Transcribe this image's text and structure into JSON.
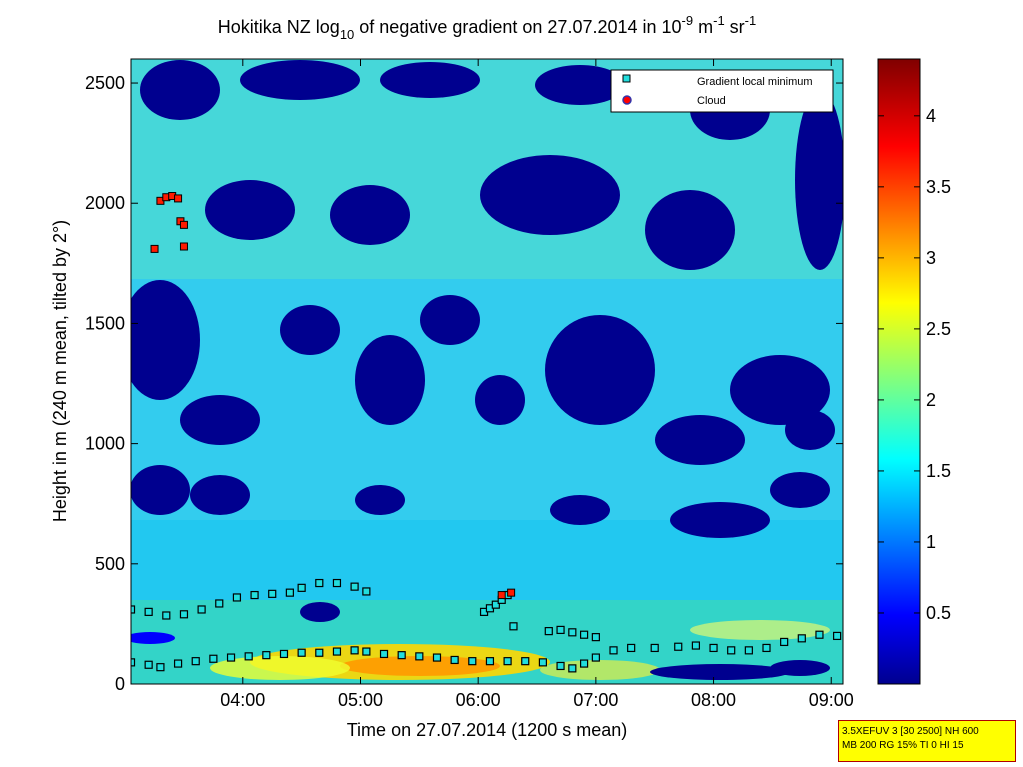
{
  "chart_data": {
    "type": "heatmap",
    "title": "Hokitika NZ log10 of negative gradient on 27.07.2014 in 10^-9 m^-1 sr^-1",
    "title_parts": {
      "pre": "Hokitika NZ log",
      "sub": "10",
      "mid": " of negative gradient on 27.07.2014 in 10",
      "sup1": "-9",
      "unit1": " m",
      "sup2": "-1",
      "unit2": " sr",
      "sup3": "-1"
    },
    "xlabel": "Time on 27.07.2014 (1200 s mean)",
    "ylabel": "Height in m (240 m mean, tilted by 2°)",
    "x_range_hours": [
      3.05,
      9.1
    ],
    "xlim": [
      "03:03",
      "09:06"
    ],
    "ylim": [
      0,
      2600
    ],
    "x_tick_labels": [
      "04:00",
      "05:00",
      "06:00",
      "07:00",
      "08:00",
      "09:00"
    ],
    "x_tick_hours": [
      4,
      5,
      6,
      7,
      8,
      9
    ],
    "y_ticks": [
      0,
      500,
      1000,
      1500,
      2000,
      2500
    ],
    "colorbar": {
      "range": [
        0,
        4.4
      ],
      "ticks": [
        0.5,
        1,
        1.5,
        2,
        2.5,
        3,
        3.5,
        4
      ],
      "colormap": "jet"
    },
    "legend": {
      "placement": "top-right",
      "entries": [
        {
          "label": "Gradient local minimum",
          "color": "#22dddd",
          "marker": "square"
        },
        {
          "label": "Cloud",
          "color": "#ff0000",
          "marker": "circle"
        }
      ]
    },
    "grid": false,
    "series": [
      {
        "name": "Gradient local minimum",
        "points": [
          [
            3.05,
            310
          ],
          [
            3.2,
            300
          ],
          [
            3.35,
            285
          ],
          [
            3.5,
            290
          ],
          [
            3.65,
            310
          ],
          [
            3.8,
            335
          ],
          [
            3.95,
            360
          ],
          [
            4.1,
            370
          ],
          [
            4.25,
            375
          ],
          [
            4.4,
            380
          ],
          [
            4.5,
            400
          ],
          [
            4.65,
            420
          ],
          [
            4.8,
            420
          ],
          [
            4.95,
            405
          ],
          [
            5.05,
            385
          ],
          [
            3.05,
            90
          ],
          [
            3.2,
            80
          ],
          [
            3.3,
            70
          ],
          [
            3.45,
            85
          ],
          [
            3.6,
            95
          ],
          [
            3.75,
            105
          ],
          [
            3.9,
            110
          ],
          [
            4.05,
            115
          ],
          [
            4.2,
            120
          ],
          [
            4.35,
            125
          ],
          [
            4.5,
            130
          ],
          [
            4.65,
            130
          ],
          [
            4.8,
            135
          ],
          [
            4.95,
            140
          ],
          [
            5.05,
            135
          ],
          [
            5.2,
            125
          ],
          [
            5.35,
            120
          ],
          [
            5.5,
            115
          ],
          [
            5.65,
            110
          ],
          [
            5.8,
            100
          ],
          [
            5.95,
            95
          ],
          [
            6.1,
            95
          ],
          [
            6.25,
            95
          ],
          [
            6.4,
            95
          ],
          [
            6.55,
            90
          ],
          [
            6.7,
            75
          ],
          [
            6.8,
            65
          ],
          [
            6.9,
            85
          ],
          [
            7.0,
            110
          ],
          [
            7.15,
            140
          ],
          [
            7.3,
            150
          ],
          [
            7.5,
            150
          ],
          [
            7.7,
            155
          ],
          [
            7.85,
            160
          ],
          [
            8.0,
            150
          ],
          [
            8.15,
            140
          ],
          [
            8.3,
            140
          ],
          [
            8.45,
            150
          ],
          [
            8.6,
            175
          ],
          [
            8.75,
            190
          ],
          [
            8.9,
            205
          ],
          [
            9.05,
            200
          ],
          [
            6.05,
            300
          ],
          [
            6.1,
            315
          ],
          [
            6.15,
            330
          ],
          [
            6.2,
            350
          ],
          [
            6.25,
            370
          ],
          [
            6.3,
            240
          ],
          [
            6.6,
            220
          ],
          [
            6.7,
            225
          ],
          [
            6.8,
            215
          ],
          [
            6.9,
            205
          ],
          [
            7.0,
            195
          ]
        ]
      },
      {
        "name": "Cloud",
        "points": [
          [
            3.25,
            1810
          ],
          [
            3.3,
            2010
          ],
          [
            3.35,
            2025
          ],
          [
            3.4,
            2030
          ],
          [
            3.45,
            2020
          ],
          [
            3.47,
            1925
          ],
          [
            3.5,
            1910
          ],
          [
            3.5,
            1820
          ],
          [
            6.2,
            370
          ],
          [
            6.28,
            380
          ]
        ]
      }
    ]
  },
  "info_box": {
    "line1": "3.5XEFUV 3 [30 2500] NH 600",
    "line2": "MB 200 RG 15% TI 0 HI 15"
  }
}
